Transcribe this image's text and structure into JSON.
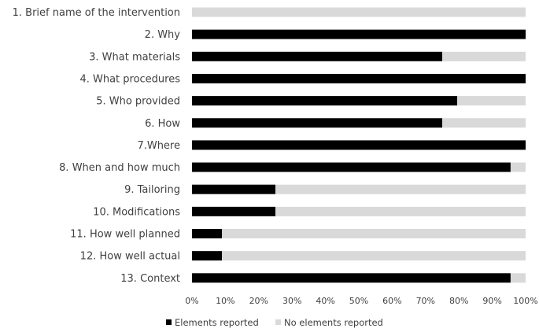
{
  "chart_data": {
    "type": "bar",
    "orientation": "horizontal",
    "stacked": true,
    "categories": [
      "1. Brief name of the intervention",
      "2. Why",
      "3. What materials",
      "4. What procedures",
      "5. Who provided",
      "6. How",
      "7.Where",
      "8. When and how much",
      "9. Tailoring",
      "10. Modifications",
      "11. How well planned",
      "12. How well actual",
      "13. Context"
    ],
    "series": [
      {
        "name": "Elements reported",
        "color": "#000000",
        "values": [
          0,
          100,
          75,
          100,
          79.5,
          75,
          100,
          95.5,
          25,
          25,
          9,
          9,
          95.5
        ]
      },
      {
        "name": "No elements reported",
        "color": "#d9d9d9",
        "values": [
          100,
          0,
          25,
          0,
          20.5,
          25,
          0,
          4.5,
          75,
          75,
          91,
          91,
          4.5
        ]
      }
    ],
    "x_ticks": [
      "0%",
      "10%",
      "20%",
      "30%",
      "40%",
      "50%",
      "60%",
      "70%",
      "80%",
      "90%",
      "100%"
    ],
    "xlim": [
      0,
      100
    ],
    "grid": false,
    "legend_position": "bottom"
  }
}
